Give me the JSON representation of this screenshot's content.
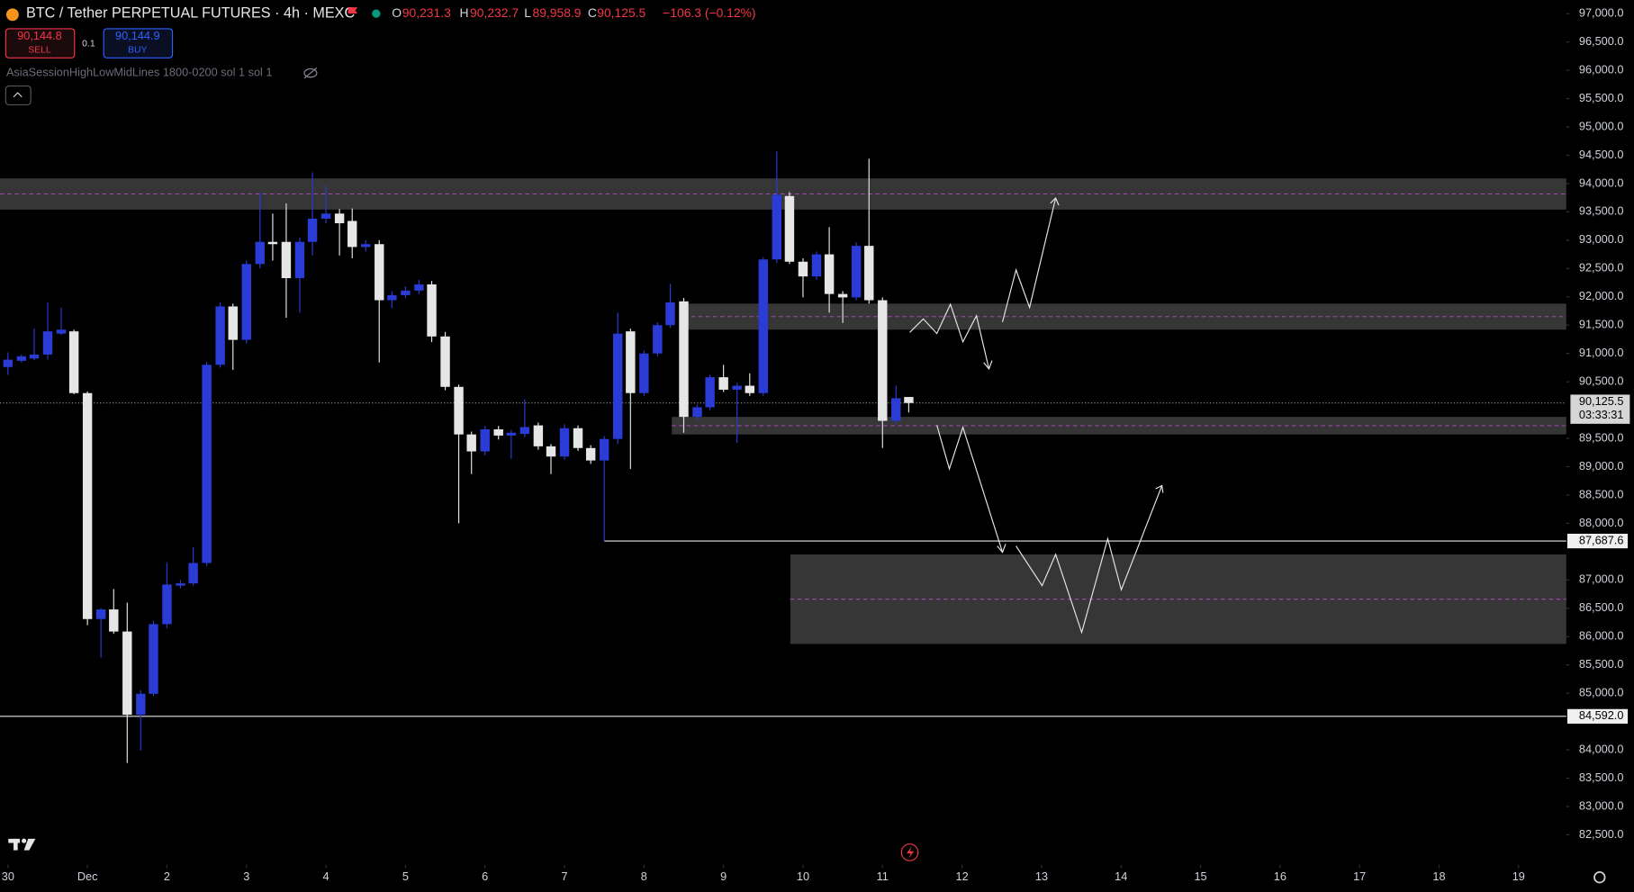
{
  "toolbar": {
    "o_label": "O",
    "open": "90,231.3",
    "h_label": "H",
    "high": "90,232.7",
    "l_label": "L",
    "low": "89,958.9",
    "c_label": "C",
    "close": "90,125.5",
    "change": "−106.3 (−0.12%)",
    "sell_price": "90,144.8",
    "sell": "SELL",
    "quantity": "0.1",
    "buy_price": "90,144.9",
    "buy": "BUY",
    "indicator": "AsiaSessionHighLowMidLines 1800-0200 sol 1 sol 1"
  },
  "chart_data": {
    "type": "candlestick",
    "title": "BTC / Tether PERPETUAL FUTURES · 4h · MEXC",
    "up_color": "#2a3bd6",
    "down_color": "#e6e6e6",
    "xlim": [
      -0.1,
      19.6
    ],
    "ylim": [
      81970,
      97240
    ],
    "xticks": [
      {
        "value": 0,
        "label": "30"
      },
      {
        "value": 1,
        "label": "Dec"
      },
      2,
      3,
      4,
      5,
      6,
      7,
      8,
      9,
      10,
      11,
      12,
      13,
      14,
      15,
      16,
      17,
      18,
      19
    ],
    "yticks": [
      {
        "value": 97000,
        "label": "97,000.0"
      },
      {
        "value": 96500,
        "label": "96,500.0"
      },
      {
        "value": 96000,
        "label": "96,000.0"
      },
      {
        "value": 95500,
        "label": "95,500.0"
      },
      {
        "value": 95000,
        "label": "95,000.0"
      },
      {
        "value": 94500,
        "label": "94,500.0"
      },
      {
        "value": 94000,
        "label": "94,000.0"
      },
      {
        "value": 93500,
        "label": "93,500.0"
      },
      {
        "value": 93000,
        "label": "93,000.0"
      },
      {
        "value": 92500,
        "label": "92,500.0"
      },
      {
        "value": 92000,
        "label": "92,000.0"
      },
      {
        "value": 91500,
        "label": "91,500.0"
      },
      {
        "value": 91000,
        "label": "91,000.0"
      },
      {
        "value": 90500,
        "label": "90,500.0"
      },
      {
        "value": 89500,
        "label": "89,500.0"
      },
      {
        "value": 89000,
        "label": "89,000.0"
      },
      {
        "value": 88500,
        "label": "88,500.0"
      },
      {
        "value": 88000,
        "label": "88,000.0"
      },
      {
        "value": 87000,
        "label": "87,000.0"
      },
      {
        "value": 86500,
        "label": "86,500.0"
      },
      {
        "value": 86000,
        "label": "86,000.0"
      },
      {
        "value": 85500,
        "label": "85,500.0"
      },
      {
        "value": 85000,
        "label": "85,000.0"
      },
      {
        "value": 84000,
        "label": "84,000.0"
      },
      {
        "value": 83500,
        "label": "83,500.0"
      },
      {
        "value": 83000,
        "label": "83,000.0"
      },
      {
        "value": 82500,
        "label": "82,500.0"
      }
    ],
    "x": [
      0,
      0.17,
      0.33,
      0.5,
      0.67,
      0.83,
      1,
      1.17,
      1.33,
      1.5,
      1.67,
      1.83,
      2,
      2.17,
      2.33,
      2.5,
      2.67,
      2.83,
      3,
      3.17,
      3.33,
      3.5,
      3.67,
      3.83,
      4,
      4.17,
      4.33,
      4.5,
      4.67,
      4.83,
      5,
      5.17,
      5.33,
      5.5,
      5.67,
      5.83,
      6,
      6.17,
      6.33,
      6.5,
      6.67,
      6.83,
      7,
      7.17,
      7.33,
      7.5,
      7.67,
      7.83,
      8,
      8.17,
      8.33,
      8.5,
      8.67,
      8.83,
      9,
      9.17,
      9.33,
      9.5,
      9.67,
      9.83,
      10,
      10.17,
      10.33,
      10.5,
      10.67,
      10.83,
      11,
      11.17,
      11.33
    ],
    "open": [
      90760,
      90870,
      90910,
      90980,
      91350,
      91390,
      90300,
      86310,
      86480,
      86090,
      84620,
      84990,
      86220,
      86900,
      86940,
      87300,
      90800,
      91830,
      91240,
      92580,
      92970,
      92970,
      92330,
      92970,
      93380,
      93470,
      93340,
      92880,
      92930,
      91940,
      92030,
      92110,
      92220,
      91300,
      90410,
      89570,
      89270,
      89660,
      89550,
      89580,
      89730,
      89360,
      89180,
      89680,
      89330,
      89110,
      89490,
      91390,
      90300,
      91000,
      91500,
      91920,
      89880,
      90050,
      90580,
      90360,
      90430,
      90300,
      92660,
      93780,
      92620,
      92360,
      92750,
      92050,
      91990,
      92900,
      91940,
      89810,
      90231.3
    ],
    "high": [
      91020,
      90980,
      91440,
      91900,
      91810,
      91420,
      90330,
      86500,
      86840,
      86600,
      85050,
      86280,
      87300,
      87000,
      87580,
      90850,
      91900,
      91880,
      92640,
      93840,
      93470,
      93650,
      93050,
      94200,
      93960,
      93550,
      93560,
      93000,
      93000,
      92100,
      92180,
      92300,
      92280,
      91380,
      90450,
      89620,
      89720,
      89720,
      89650,
      90190,
      89780,
      89400,
      89750,
      89730,
      89380,
      89540,
      91720,
      91440,
      91050,
      91550,
      92230,
      91980,
      90100,
      90620,
      90800,
      90480,
      90650,
      92700,
      94570,
      93850,
      92680,
      92800,
      93230,
      92100,
      92960,
      94440,
      91990,
      90430,
      90232.7
    ],
    "low": [
      90620,
      90840,
      90880,
      90890,
      91330,
      90280,
      86200,
      85630,
      86050,
      83770,
      83990,
      84950,
      86150,
      86850,
      86900,
      87250,
      90750,
      90710,
      91180,
      92500,
      92640,
      91630,
      91720,
      92730,
      93300,
      92730,
      92680,
      92800,
      90840,
      91800,
      91980,
      92050,
      91200,
      90350,
      88000,
      88870,
      89200,
      89480,
      89140,
      89520,
      89300,
      88870,
      89120,
      89280,
      89050,
      87690,
      89400,
      88960,
      90250,
      90950,
      91450,
      89600,
      89820,
      90000,
      90320,
      89420,
      90250,
      90250,
      92600,
      92580,
      91990,
      92300,
      91720,
      91540,
      91940,
      91880,
      89330,
      89750,
      89958.9
    ],
    "close": [
      90890,
      90950,
      90980,
      91390,
      91420,
      90300,
      86310,
      86480,
      86090,
      84620,
      84990,
      86220,
      86920,
      86940,
      87300,
      90800,
      91830,
      91240,
      92580,
      92970,
      92930,
      92330,
      92970,
      93380,
      93470,
      93300,
      92880,
      92930,
      91940,
      92030,
      92110,
      92220,
      91300,
      90410,
      89570,
      89270,
      89660,
      89550,
      89600,
      89700,
      89360,
      89180,
      89680,
      89330,
      89110,
      89490,
      91350,
      90300,
      91000,
      91500,
      91900,
      89880,
      90050,
      90580,
      90360,
      90430,
      90300,
      92660,
      93800,
      92620,
      92360,
      92750,
      92050,
      91990,
      92900,
      91940,
      89810,
      90210,
      90125.5
    ],
    "zones": [
      {
        "x0": -0.1,
        "top": 94090,
        "bottom": 93540
      },
      {
        "x0": 8.5,
        "top": 91880,
        "bottom": 91420
      },
      {
        "x0": 8.35,
        "top": 89880,
        "bottom": 89570
      },
      {
        "x0": 9.84,
        "top": 87450,
        "bottom": 85870
      }
    ],
    "zone_color": "#3c3c3c",
    "midline_color": "#b04ac0",
    "levels": [
      {
        "value": 87687.6,
        "label": "87,687.6",
        "x0": 7.5
      },
      {
        "value": 84592,
        "label": "84,592.0",
        "x0": -0.1
      }
    ],
    "last": {
      "value": 90125.5,
      "label": "90,125.5",
      "countdown": "03:33:31"
    }
  }
}
